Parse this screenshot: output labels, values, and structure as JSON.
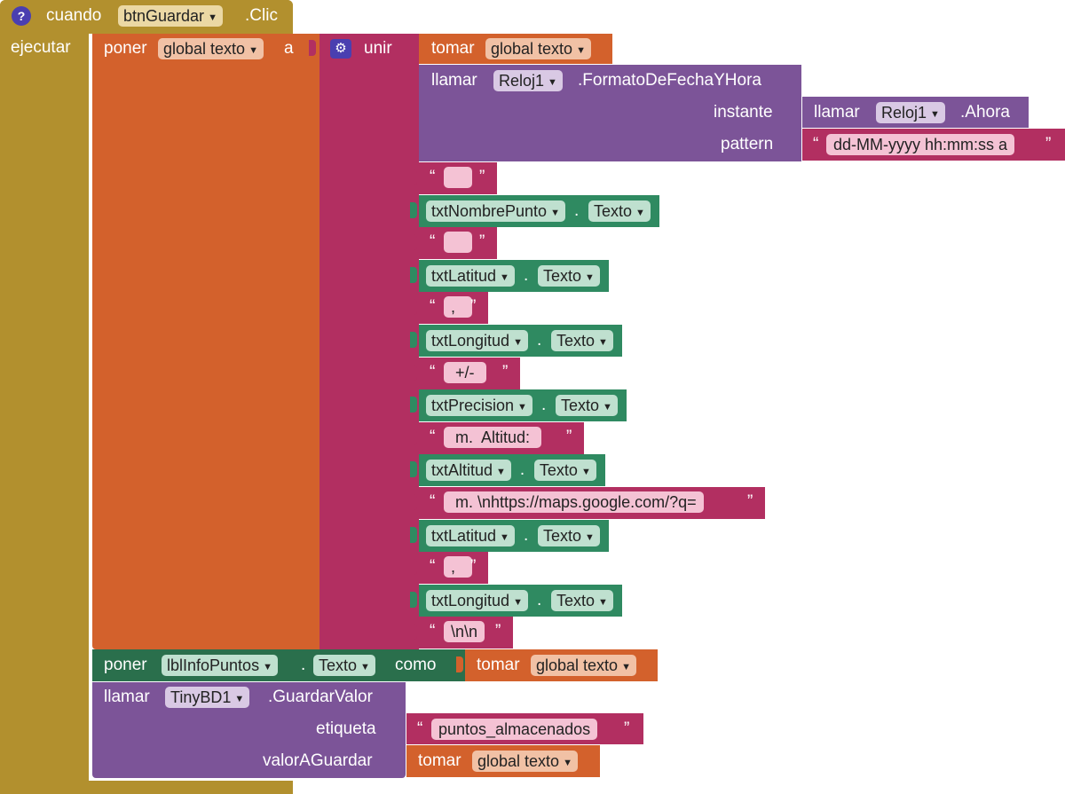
{
  "event": {
    "help_glyph": "?",
    "cuando": "cuando",
    "component": "btnGuardar",
    "event_name": ".Clic",
    "ejecutar": "ejecutar"
  },
  "set_global": {
    "poner": "poner",
    "var": "global texto",
    "a": "a"
  },
  "join": {
    "label": "unir",
    "tomar": "tomar",
    "var": "global texto",
    "date_call": {
      "llamar": "llamar",
      "component": "Reloj1",
      "method": ".FormatoDeFechaYHora",
      "instante_label": "instante",
      "now_llamar": "llamar",
      "now_component": "Reloj1",
      "now_method": ".Ahora",
      "pattern_label": "pattern",
      "pattern_value": "dd-MM-yyyy hh:mm:ss a"
    },
    "items": [
      {
        "type": "text",
        "value": ""
      },
      {
        "type": "comp",
        "component": "txtNombrePunto",
        "prop": "Texto"
      },
      {
        "type": "text",
        "value": ""
      },
      {
        "type": "comp",
        "component": "txtLatitud",
        "prop": "Texto"
      },
      {
        "type": "text",
        "value": ","
      },
      {
        "type": "comp",
        "component": "txtLongitud",
        "prop": "Texto"
      },
      {
        "type": "text",
        "value": " +/- "
      },
      {
        "type": "comp",
        "component": "txtPrecision",
        "prop": "Texto"
      },
      {
        "type": "text",
        "value": " m.  Altitud: "
      },
      {
        "type": "comp",
        "component": "txtAltitud",
        "prop": "Texto"
      },
      {
        "type": "text",
        "value": " m. \\nhttps://maps.google.com/?q="
      },
      {
        "type": "comp",
        "component": "txtLatitud",
        "prop": "Texto"
      },
      {
        "type": "text",
        "value": ","
      },
      {
        "type": "comp",
        "component": "txtLongitud",
        "prop": "Texto"
      },
      {
        "type": "text",
        "value": "\\n\\n"
      }
    ]
  },
  "set_label": {
    "poner": "poner",
    "component": "lblInfoPuntos",
    "dot": ".",
    "prop": "Texto",
    "como": "como",
    "tomar": "tomar",
    "var": "global texto"
  },
  "store": {
    "llamar": "llamar",
    "component": "TinyBD1",
    "method": ".GuardarValor",
    "etiqueta_label": "etiqueta",
    "etiqueta_value": "puntos_almacenados",
    "valor_label": "valorAGuardar",
    "tomar": "tomar",
    "var": "global texto"
  },
  "quote_open": "“",
  "quote_close": "”",
  "dot": ".",
  "arrow": "▼"
}
